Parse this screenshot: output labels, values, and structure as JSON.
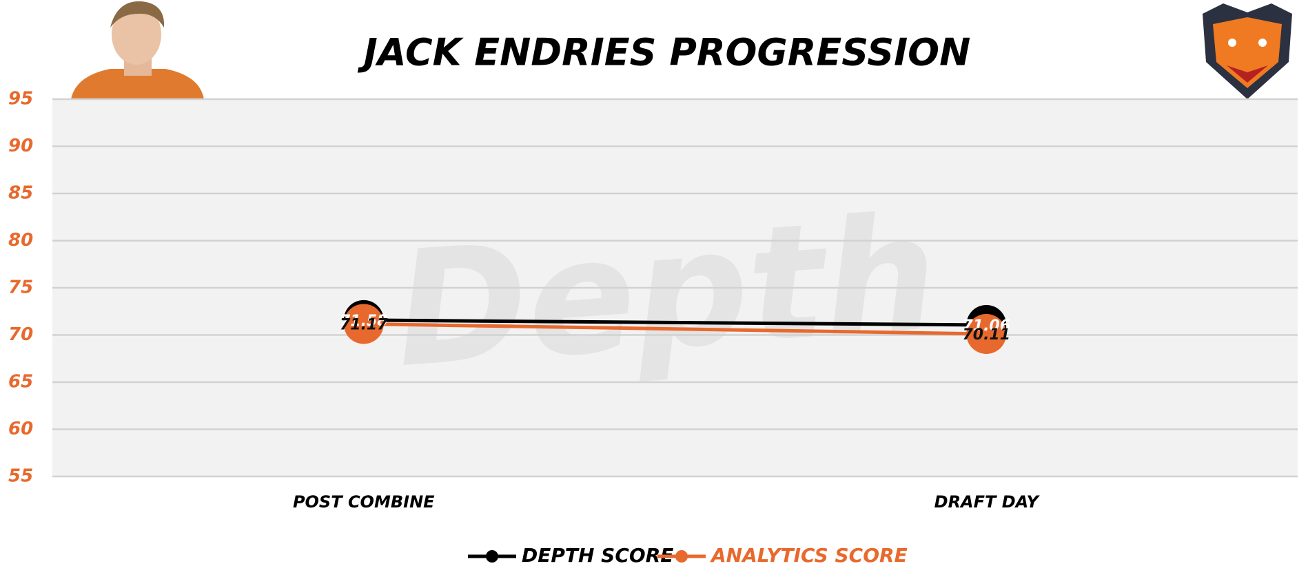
{
  "chart_data": {
    "type": "line",
    "title": "JACK ENDRIES PROGRESSION",
    "watermark": "Depth",
    "categories": [
      "POST COMBINE",
      "DRAFT DAY"
    ],
    "series": [
      {
        "name": "DEPTH SCORE",
        "color": "#000000",
        "values": [
          71.58,
          71.06
        ]
      },
      {
        "name": "ANALYTICS SCORE",
        "color": "#e8692d",
        "values": [
          71.17,
          70.11
        ]
      }
    ],
    "ylim": [
      55,
      95
    ],
    "yticks": [
      55,
      60,
      65,
      70,
      75,
      80,
      85,
      90,
      95
    ],
    "grid": true,
    "legend": "bottom"
  }
}
